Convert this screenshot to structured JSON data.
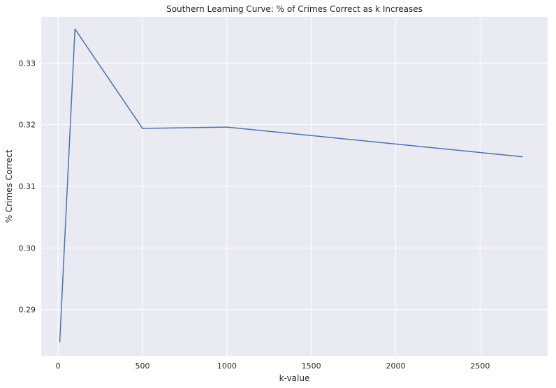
{
  "chart_data": {
    "type": "line",
    "title": "Southern Learning Curve: % of Crimes Correct as k Increases",
    "xlabel": "k-value",
    "ylabel": "% Crimes Correct",
    "xlim": [
      -100,
      2900
    ],
    "ylim": [
      0.2825,
      0.3375
    ],
    "x_ticks": [
      0,
      500,
      1000,
      1500,
      2000,
      2500
    ],
    "x_tick_labels": [
      "0",
      "500",
      "1000",
      "1500",
      "2000",
      "2500"
    ],
    "y_ticks": [
      0.29,
      0.3,
      0.31,
      0.32,
      0.33
    ],
    "y_tick_labels": [
      "0.29",
      "0.30",
      "0.31",
      "0.32",
      "0.33"
    ],
    "grid": true,
    "series": [
      {
        "color": "#4c72b0",
        "x": [
          10,
          100,
          500,
          1000,
          2750
        ],
        "y": [
          0.2848,
          0.3355,
          0.3194,
          0.3196,
          0.3148
        ]
      }
    ]
  }
}
